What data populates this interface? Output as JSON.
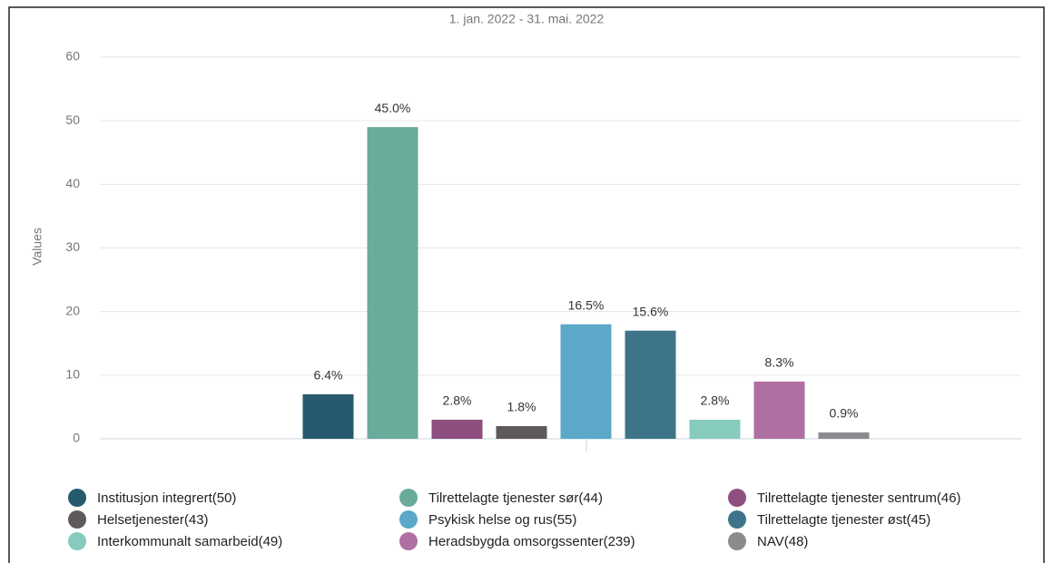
{
  "chart_data": {
    "type": "bar",
    "subtitle": "1. jan. 2022 - 31. mai. 2022",
    "ylabel": "Values",
    "ylim": [
      0,
      60
    ],
    "yticks": [
      0,
      10,
      20,
      30,
      40,
      50,
      60
    ],
    "grid": true,
    "series": [
      {
        "name": "Institusjon integrert(50)",
        "color": "#265a6e",
        "values": [
          7
        ],
        "data_labels": [
          "6.4%"
        ]
      },
      {
        "name": "Tilrettelagte tjenester sør(44)",
        "color": "#6aab9c",
        "values": [
          49
        ],
        "data_labels": [
          "45.0%"
        ]
      },
      {
        "name": "Tilrettelagte tjenester sentrum(46)",
        "color": "#8c4f7e",
        "values": [
          3
        ],
        "data_labels": [
          "2.8%"
        ]
      },
      {
        "name": "Helsetjenester(43)",
        "color": "#5e5a5c",
        "values": [
          2
        ],
        "data_labels": [
          "1.8%"
        ]
      },
      {
        "name": "Psykisk helse og rus(55)",
        "color": "#5ba8c9",
        "values": [
          18
        ],
        "data_labels": [
          "16.5%"
        ]
      },
      {
        "name": "Tilrettelagte tjenester øst(45)",
        "color": "#3e7489",
        "values": [
          17
        ],
        "data_labels": [
          "15.6%"
        ]
      },
      {
        "name": "Interkommunalt samarbeid(49)",
        "color": "#86cbbd",
        "values": [
          3
        ],
        "data_labels": [
          "2.8%"
        ]
      },
      {
        "name": "Heradsbygda omsorgssenter(239)",
        "color": "#b06fa3",
        "values": [
          9
        ],
        "data_labels": [
          "8.3%"
        ]
      },
      {
        "name": "NAV(48)",
        "color": "#8c8a8c",
        "values": [
          1
        ],
        "data_labels": [
          "0.9%"
        ]
      }
    ]
  }
}
